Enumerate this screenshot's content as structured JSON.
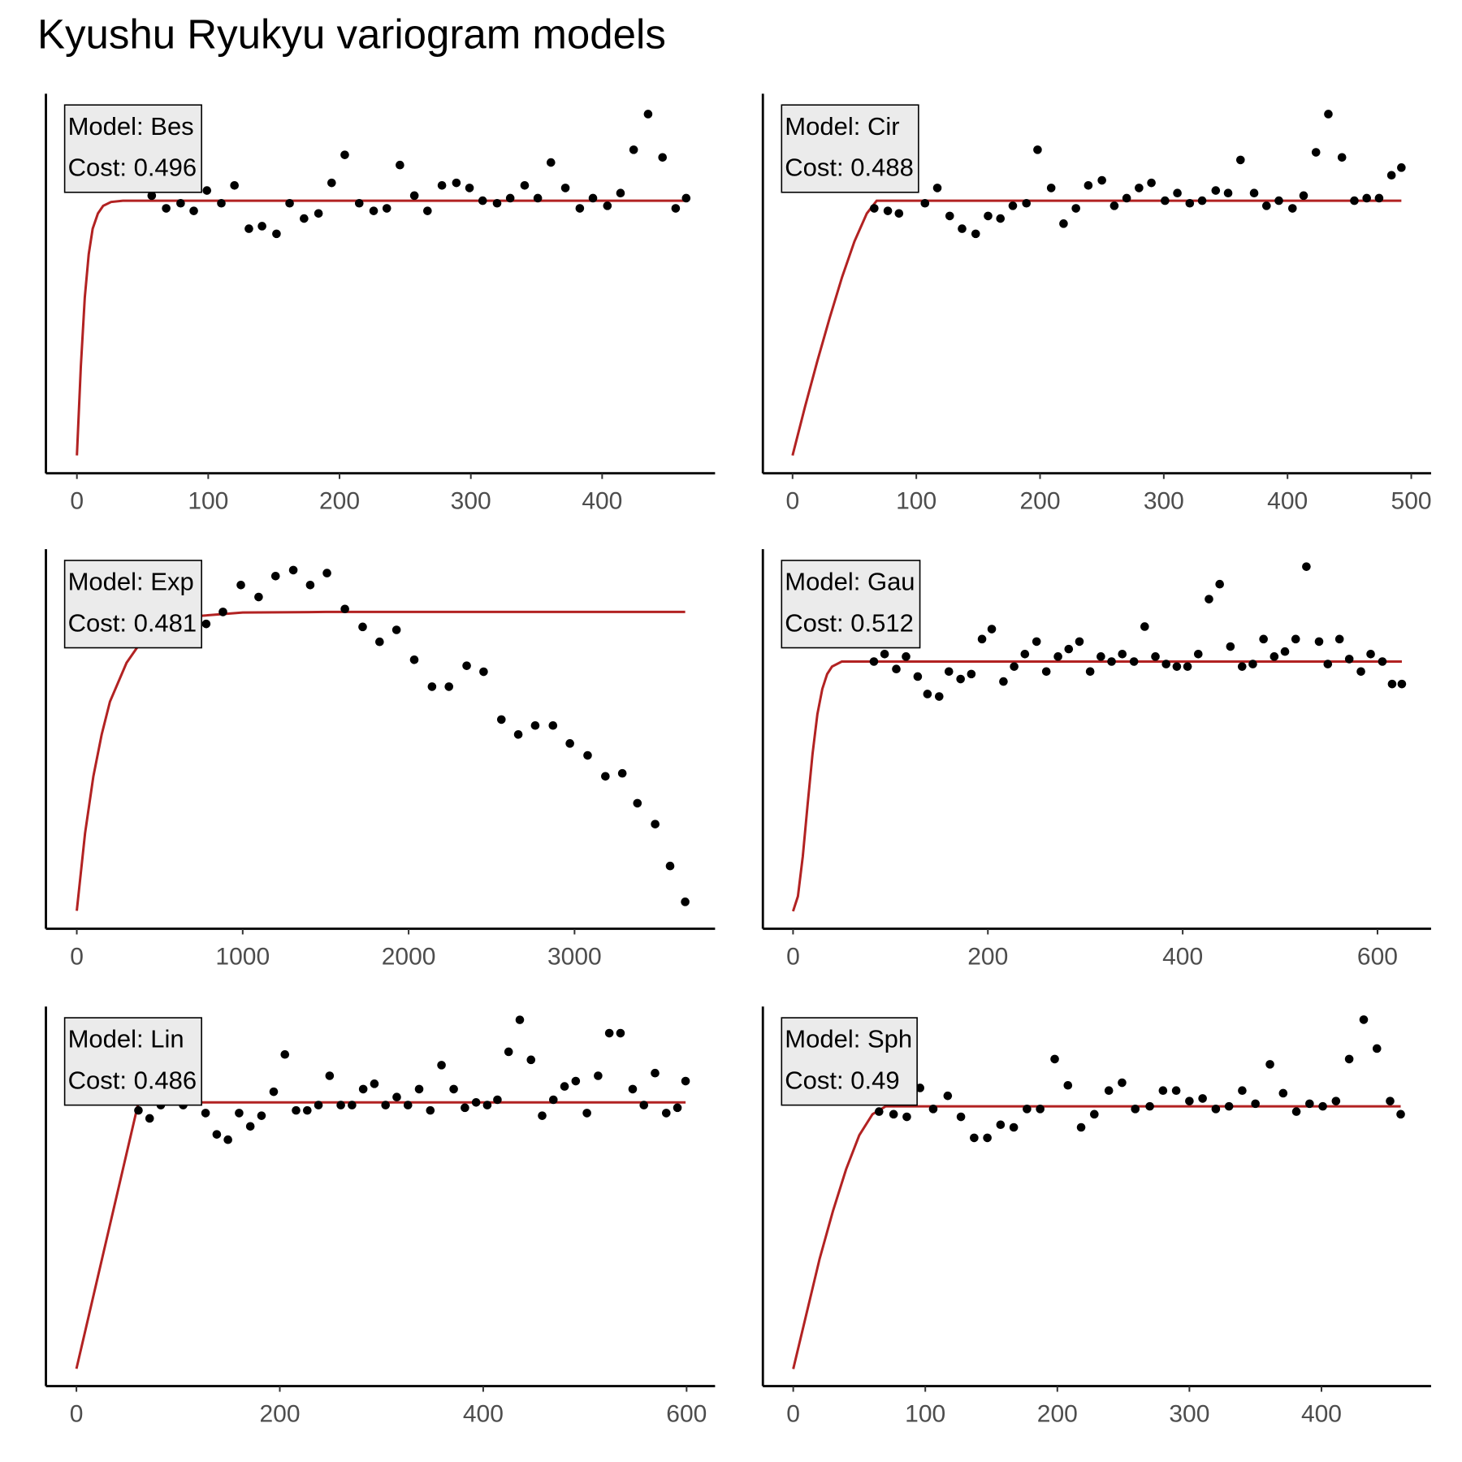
{
  "title": "Kyushu Ryukyu variogram models",
  "chart_data": [
    {
      "type": "scatter",
      "annotation": [
        "Model: Bes",
        "Cost: 0.496"
      ],
      "xlim": [
        -23.6,
        486
      ],
      "ylim": [
        -0.07,
        1.42
      ],
      "xticks": [
        0,
        100,
        200,
        300,
        400
      ],
      "points": {
        "color": "#000000",
        "x": [
          57,
          68,
          79,
          89,
          99,
          110,
          120,
          131,
          141,
          152,
          162,
          173,
          184,
          194,
          204,
          215,
          226,
          236,
          246,
          257,
          267,
          278,
          289,
          299,
          309,
          320,
          330,
          341,
          351,
          361,
          372,
          383,
          393,
          404,
          414,
          424,
          435,
          446,
          456,
          464
        ],
        "values": [
          1.02,
          0.97,
          0.99,
          0.96,
          1.04,
          0.99,
          1.06,
          0.89,
          0.9,
          0.87,
          0.99,
          0.93,
          0.95,
          1.07,
          1.18,
          0.99,
          0.96,
          0.97,
          1.14,
          1.02,
          0.96,
          1.06,
          1.07,
          1.05,
          1.0,
          0.99,
          1.01,
          1.06,
          1.01,
          1.15,
          1.05,
          0.97,
          1.01,
          0.98,
          1.03,
          1.2,
          1.34,
          1.17,
          0.97,
          1.01
        ]
      },
      "model": {
        "color": "#b22222",
        "x": [
          0,
          3,
          6,
          9,
          12,
          16,
          20,
          26,
          35,
          464
        ],
        "values": [
          0,
          0.35,
          0.62,
          0.79,
          0.89,
          0.95,
          0.98,
          0.995,
          1,
          1
        ]
      }
    },
    {
      "type": "scatter",
      "annotation": [
        "Model: Cir",
        "Cost: 0.488"
      ],
      "xlim": [
        -24,
        516
      ],
      "ylim": [
        -0.07,
        1.42
      ],
      "xticks": [
        0,
        100,
        200,
        300,
        400,
        500
      ],
      "points": {
        "color": "#000000",
        "x": [
          66,
          77,
          86,
          96,
          107,
          117,
          127,
          137,
          148,
          158,
          168,
          178,
          189,
          198,
          209,
          219,
          229,
          239,
          250,
          260,
          270,
          280,
          290,
          301,
          311,
          321,
          331,
          342,
          352,
          362,
          373,
          383,
          393,
          404,
          413,
          423,
          433,
          444,
          454,
          464,
          474,
          484,
          492
        ],
        "values": [
          0.97,
          0.96,
          0.95,
          1.07,
          0.99,
          1.05,
          0.94,
          0.89,
          0.87,
          0.94,
          0.93,
          0.98,
          0.99,
          1.2,
          1.05,
          0.91,
          0.97,
          1.06,
          1.08,
          0.98,
          1.01,
          1.05,
          1.07,
          1.0,
          1.03,
          0.99,
          1.0,
          1.04,
          1.03,
          1.16,
          1.03,
          0.98,
          1.0,
          0.97,
          1.02,
          1.19,
          1.34,
          1.17,
          1.0,
          1.01,
          1.01,
          1.1,
          1.13
        ]
      },
      "model": {
        "color": "#b22222",
        "x": [
          0,
          10,
          20,
          30,
          40,
          50,
          60,
          68,
          492
        ],
        "values": [
          0,
          0.19,
          0.37,
          0.54,
          0.7,
          0.84,
          0.95,
          1,
          1
        ]
      }
    },
    {
      "type": "scatter",
      "annotation": [
        "Model: Exp",
        "Cost: 0.481"
      ],
      "xlim": [
        -186,
        3847
      ],
      "ylim": [
        -0.06,
        1.21
      ],
      "xticks": [
        0,
        1000,
        2000,
        3000
      ],
      "points": {
        "color": "#000000",
        "x": [
          780,
          881,
          989,
          1096,
          1198,
          1305,
          1407,
          1508,
          1616,
          1723,
          1825,
          1927,
          2034,
          2141,
          2243,
          2350,
          2452,
          2559,
          2661,
          2763,
          2870,
          2972,
          3079,
          3186,
          3288,
          3379,
          3486,
          3576,
          3667
        ],
        "values": [
          0.96,
          1.0,
          1.09,
          1.05,
          1.12,
          1.14,
          1.09,
          1.13,
          1.01,
          0.95,
          0.9,
          0.94,
          0.84,
          0.75,
          0.75,
          0.82,
          0.8,
          0.64,
          0.59,
          0.62,
          0.62,
          0.56,
          0.52,
          0.45,
          0.46,
          0.36,
          0.29,
          0.15,
          0.03
        ]
      },
      "model": {
        "color": "#b22222",
        "x": [
          0,
          50,
          100,
          150,
          200,
          300,
          400,
          500,
          700,
          1000,
          1500,
          3667
        ],
        "values": [
          0,
          0.26,
          0.45,
          0.59,
          0.7,
          0.83,
          0.91,
          0.95,
          0.985,
          0.998,
          1,
          1
        ]
      }
    },
    {
      "type": "scatter",
      "annotation": [
        "Model: Gau",
        "Cost: 0.512"
      ],
      "xlim": [
        -31,
        655
      ],
      "ylim": [
        -0.07,
        1.45
      ],
      "xticks": [
        0,
        200,
        400,
        600
      ],
      "points": {
        "color": "#000000",
        "x": [
          83,
          94,
          106,
          116,
          128,
          138,
          150,
          160,
          172,
          183,
          194,
          204,
          216,
          227,
          238,
          250,
          260,
          272,
          283,
          294,
          305,
          316,
          327,
          338,
          350,
          361,
          372,
          383,
          394,
          405,
          416,
          427,
          438,
          449,
          461,
          472,
          483,
          494,
          505,
          516,
          527,
          540,
          549,
          561,
          571,
          583,
          593,
          605,
          615,
          625
        ],
        "values": [
          1.0,
          1.03,
          0.97,
          1.02,
          0.94,
          0.87,
          0.86,
          0.96,
          0.93,
          0.95,
          1.09,
          1.13,
          0.92,
          0.98,
          1.03,
          1.08,
          0.96,
          1.02,
          1.05,
          1.08,
          0.96,
          1.02,
          1.0,
          1.03,
          1.0,
          1.14,
          1.02,
          0.99,
          0.98,
          0.98,
          1.03,
          1.25,
          1.31,
          1.06,
          0.98,
          0.99,
          1.09,
          1.02,
          1.04,
          1.09,
          1.38,
          1.08,
          0.99,
          1.09,
          1.01,
          0.96,
          1.03,
          1.0,
          0.91,
          0.91
        ]
      },
      "model": {
        "color": "#b22222",
        "x": [
          0,
          5,
          10,
          15,
          20,
          25,
          30,
          35,
          40,
          50,
          625
        ],
        "values": [
          0,
          0.06,
          0.22,
          0.43,
          0.63,
          0.79,
          0.89,
          0.95,
          0.98,
          1,
          1
        ]
      }
    },
    {
      "type": "scatter",
      "annotation": [
        "Model: Lin",
        "Cost: 0.486"
      ],
      "xlim": [
        -30,
        628
      ],
      "ylim": [
        -0.065,
        1.36
      ],
      "xticks": [
        0,
        200,
        400,
        600
      ],
      "points": {
        "color": "#000000",
        "x": [
          61,
          72,
          83,
          94,
          105,
          116,
          127,
          138,
          149,
          160,
          171,
          182,
          194,
          205,
          216,
          227,
          238,
          249,
          260,
          271,
          282,
          293,
          304,
          315,
          326,
          337,
          348,
          359,
          371,
          382,
          393,
          404,
          414,
          425,
          436,
          447,
          458,
          469,
          480,
          491,
          502,
          513,
          524,
          535,
          547,
          558,
          569,
          580,
          591,
          599
        ],
        "values": [
          0.97,
          0.94,
          0.99,
          1.03,
          0.99,
          1.01,
          0.96,
          0.88,
          0.86,
          0.96,
          0.91,
          0.95,
          1.04,
          1.18,
          0.97,
          0.97,
          0.99,
          1.1,
          0.99,
          0.99,
          1.05,
          1.07,
          0.99,
          1.02,
          0.99,
          1.05,
          0.97,
          1.14,
          1.05,
          0.98,
          1.0,
          0.99,
          1.01,
          1.19,
          1.31,
          1.16,
          0.95,
          1.01,
          1.06,
          1.08,
          0.96,
          1.1,
          1.26,
          1.26,
          1.05,
          0.99,
          1.11,
          0.96,
          0.98,
          1.08
        ]
      },
      "model": {
        "color": "#b22222",
        "x": [
          0,
          61,
          599
        ],
        "values": [
          0,
          1,
          1
        ]
      }
    },
    {
      "type": "scatter",
      "annotation": [
        "Model: Sph",
        "Cost: 0.49"
      ],
      "xlim": [
        -23,
        483
      ],
      "ylim": [
        -0.065,
        1.38
      ],
      "xticks": [
        0,
        100,
        200,
        300,
        400
      ],
      "points": {
        "color": "#000000",
        "x": [
          65,
          76,
          86,
          96,
          106,
          117,
          127,
          137,
          147,
          157,
          167,
          177,
          187,
          198,
          208,
          218,
          228,
          239,
          249,
          259,
          270,
          280,
          290,
          300,
          310,
          320,
          330,
          340,
          350,
          361,
          371,
          381,
          391,
          401,
          411,
          421,
          432,
          442,
          452,
          460
        ],
        "values": [
          0.98,
          0.97,
          0.96,
          1.07,
          0.99,
          1.04,
          0.96,
          0.88,
          0.88,
          0.93,
          0.92,
          0.99,
          0.99,
          1.18,
          1.08,
          0.92,
          0.97,
          1.06,
          1.09,
          0.99,
          1.0,
          1.06,
          1.06,
          1.02,
          1.03,
          0.99,
          1.0,
          1.06,
          1.01,
          1.16,
          1.05,
          0.98,
          1.01,
          1.0,
          1.02,
          1.18,
          1.33,
          1.22,
          1.02,
          0.97
        ]
      },
      "model": {
        "color": "#b22222",
        "x": [
          0,
          10,
          20,
          30,
          40,
          50,
          60,
          70,
          460
        ],
        "values": [
          0,
          0.21,
          0.42,
          0.6,
          0.76,
          0.89,
          0.97,
          1,
          1
        ]
      }
    }
  ]
}
